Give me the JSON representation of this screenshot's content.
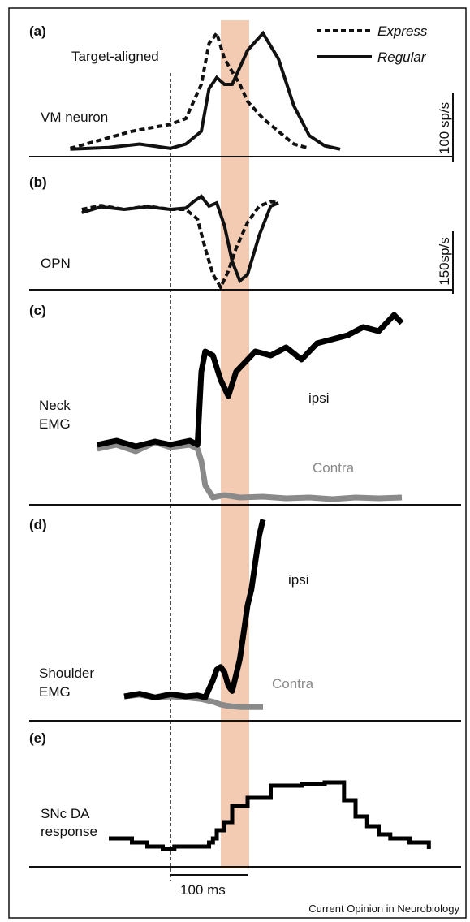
{
  "figure": {
    "credit": "Current Opinion in Neurobiology",
    "event_label": "Target-aligned",
    "scale_bar_time": "100 ms",
    "colors": {
      "highlight": "#f3cbb3",
      "ipsi": "#000000",
      "contra": "#8a8a8a"
    }
  },
  "legend": {
    "express": "Express",
    "regular": "Regular"
  },
  "chart_data": [
    {
      "type": "line",
      "panel": "(a)",
      "ylabel": "VM neuron",
      "scale": "100 sp/s",
      "x_unit": "ms relative to target",
      "series": [
        {
          "name": "Express",
          "style": "dashed",
          "x": [
            -130,
            -90,
            -50,
            -20,
            0,
            20,
            40,
            50,
            60,
            70,
            80,
            90,
            100,
            120,
            140,
            160,
            180
          ],
          "y": [
            5,
            15,
            25,
            30,
            33,
            40,
            80,
            128,
            140,
            110,
            95,
            80,
            60,
            40,
            25,
            10,
            5
          ]
        },
        {
          "name": "Regular",
          "style": "solid",
          "x": [
            -130,
            -80,
            -40,
            0,
            20,
            40,
            50,
            60,
            70,
            80,
            100,
            120,
            140,
            160,
            180,
            200,
            220
          ],
          "y": [
            4,
            6,
            10,
            5,
            10,
            25,
            75,
            88,
            80,
            80,
            120,
            140,
            110,
            55,
            20,
            8,
            4
          ]
        }
      ]
    },
    {
      "type": "line",
      "panel": "(b)",
      "ylabel": "OPN",
      "scale": "150sp/s",
      "series": [
        {
          "name": "Express",
          "style": "dashed",
          "x": [
            -115,
            -90,
            -60,
            -30,
            0,
            20,
            35,
            45,
            55,
            65,
            75,
            85,
            100,
            115,
            130,
            140
          ],
          "y": [
            0,
            6,
            0,
            5,
            0,
            0,
            -15,
            -60,
            -100,
            -120,
            -95,
            -60,
            -20,
            5,
            12,
            10
          ]
        },
        {
          "name": "Regular",
          "style": "solid",
          "x": [
            -115,
            -90,
            -60,
            -30,
            0,
            20,
            30,
            40,
            50,
            60,
            70,
            80,
            90,
            100,
            115,
            130,
            140
          ],
          "y": [
            -5,
            4,
            0,
            4,
            0,
            2,
            12,
            20,
            5,
            10,
            -25,
            -80,
            -110,
            -100,
            -40,
            5,
            10
          ]
        }
      ]
    },
    {
      "type": "line",
      "panel": "(c)",
      "ylabel": "Neck EMG",
      "series": [
        {
          "name": "ipsi",
          "x": [
            -95,
            -70,
            -45,
            -20,
            0,
            25,
            35,
            40,
            45,
            55,
            65,
            75,
            85,
            95,
            110,
            130,
            150,
            170,
            190,
            210,
            230,
            250,
            270,
            290,
            300
          ],
          "y": [
            0,
            5,
            -2,
            4,
            0,
            5,
            0,
            90,
            115,
            110,
            80,
            60,
            90,
            100,
            115,
            110,
            120,
            105,
            125,
            130,
            135,
            145,
            140,
            160,
            150
          ]
        },
        {
          "name": "Contra",
          "x": [
            -95,
            -70,
            -45,
            -20,
            0,
            25,
            35,
            40,
            45,
            55,
            70,
            90,
            120,
            150,
            180,
            210,
            240,
            270,
            300
          ],
          "y": [
            -5,
            0,
            -8,
            3,
            -3,
            0,
            -5,
            -20,
            -50,
            -65,
            -62,
            -65,
            -64,
            -66,
            -65,
            -67,
            -65,
            -66,
            -65
          ]
        }
      ]
    },
    {
      "type": "line",
      "panel": "(d)",
      "ylabel": "Shoulder EMG",
      "series": [
        {
          "name": "ipsi",
          "x": [
            -60,
            -40,
            -20,
            0,
            20,
            35,
            45,
            55,
            60,
            65,
            70,
            75,
            80,
            85,
            90,
            95,
            100,
            105,
            110,
            115,
            120
          ],
          "y": [
            0,
            5,
            -2,
            4,
            0,
            2,
            -2,
            30,
            50,
            55,
            45,
            20,
            10,
            40,
            70,
            120,
            170,
            200,
            250,
            300,
            330
          ]
        },
        {
          "name": "Contra",
          "x": [
            -60,
            -40,
            -20,
            0,
            20,
            40,
            55,
            65,
            75,
            90,
            110,
            120
          ],
          "y": [
            0,
            3,
            -2,
            0,
            -2,
            -5,
            -10,
            -15,
            -18,
            -20,
            -20,
            -20
          ]
        }
      ]
    },
    {
      "type": "line",
      "panel": "(e)",
      "ylabel": "SNc DA response",
      "series": [
        {
          "name": "SNc DA",
          "style": "step",
          "x": [
            -80,
            -50,
            -30,
            -10,
            5,
            30,
            50,
            55,
            60,
            70,
            80,
            100,
            130,
            170,
            200,
            225,
            240,
            255,
            270,
            285,
            310,
            335
          ],
          "y": [
            15,
            10,
            5,
            2,
            5,
            5,
            10,
            15,
            25,
            35,
            55,
            65,
            80,
            82,
            84,
            62,
            42,
            30,
            20,
            15,
            10,
            2
          ]
        }
      ]
    }
  ]
}
